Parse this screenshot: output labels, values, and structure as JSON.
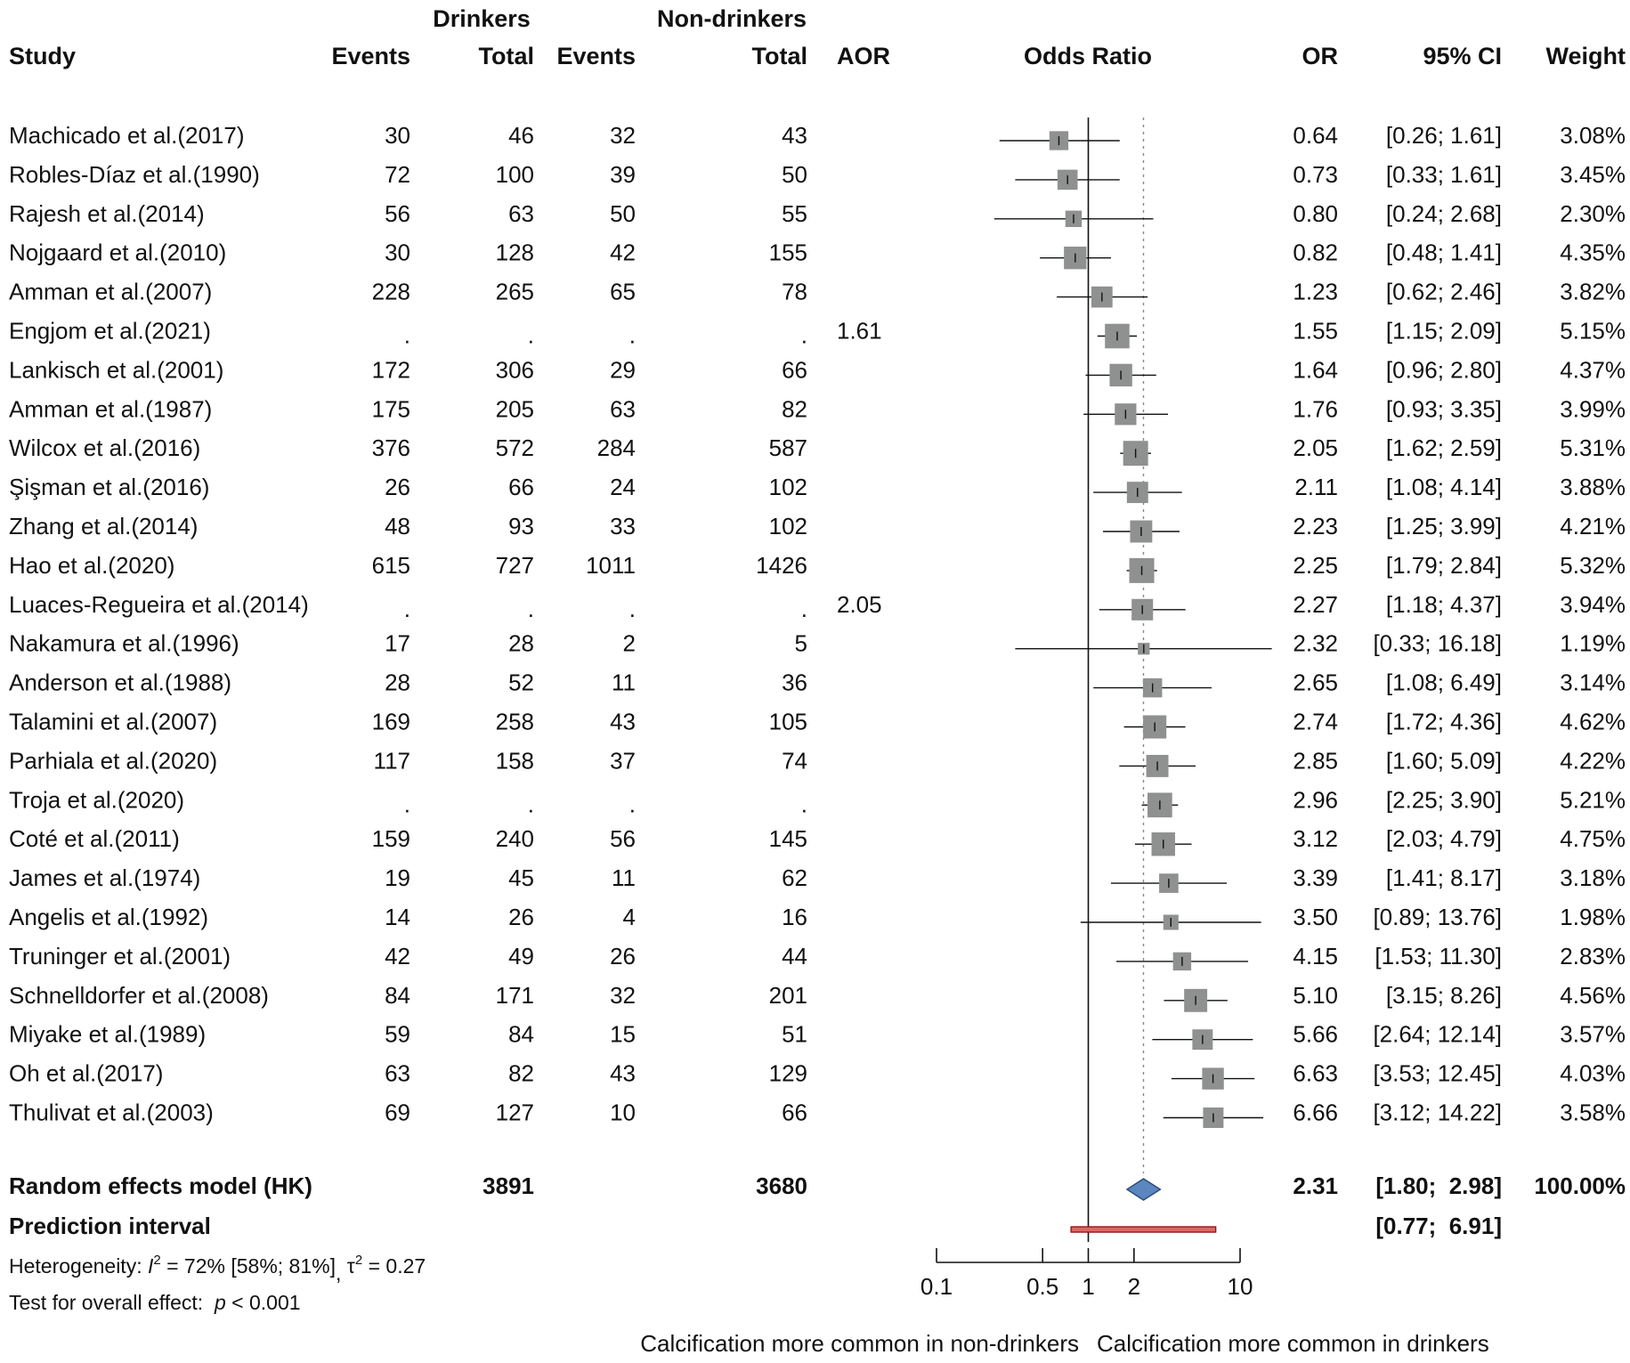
{
  "headers": {
    "group_drinkers": "Drinkers",
    "group_nondrinkers": "Non-drinkers",
    "study": "Study",
    "events_d": "Events",
    "total_d": "Total",
    "events_n": "Events",
    "total_n": "Total",
    "aor": "AOR",
    "odds_ratio": "Odds Ratio",
    "or": "OR",
    "ci": "95% CI",
    "weight": "Weight"
  },
  "chart_data": {
    "type": "forest",
    "title": "Odds Ratio",
    "xscale": "log",
    "xlim": [
      0.1,
      10
    ],
    "xticks": [
      "0.1",
      "0.5",
      "1",
      "2",
      "10"
    ],
    "null_line": 1,
    "summary_line": 2.31,
    "xlabel_left": "Calcification more common in non-drinkers",
    "xlabel_right": "Calcification more common in drinkers",
    "studies": [
      {
        "study": "Machicado et al.(2017)",
        "ev_d": "30",
        "tot_d": "46",
        "ev_n": "32",
        "tot_n": "43",
        "aor": "",
        "or": 0.64,
        "lo": 0.26,
        "hi": 1.61,
        "or_txt": "0.64",
        "ci_txt": "[0.26;  1.61]",
        "w": 3.08,
        "w_txt": "3.08%"
      },
      {
        "study": "Robles-Díaz et al.(1990)",
        "ev_d": "72",
        "tot_d": "100",
        "ev_n": "39",
        "tot_n": "50",
        "aor": "",
        "or": 0.73,
        "lo": 0.33,
        "hi": 1.61,
        "or_txt": "0.73",
        "ci_txt": "[0.33;  1.61]",
        "w": 3.45,
        "w_txt": "3.45%"
      },
      {
        "study": "Rajesh et al.(2014)",
        "ev_d": "56",
        "tot_d": "63",
        "ev_n": "50",
        "tot_n": "55",
        "aor": "",
        "or": 0.8,
        "lo": 0.24,
        "hi": 2.68,
        "or_txt": "0.80",
        "ci_txt": "[0.24;  2.68]",
        "w": 2.3,
        "w_txt": "2.30%"
      },
      {
        "study": "Nojgaard et al.(2010)",
        "ev_d": "30",
        "tot_d": "128",
        "ev_n": "42",
        "tot_n": "155",
        "aor": "",
        "or": 0.82,
        "lo": 0.48,
        "hi": 1.41,
        "or_txt": "0.82",
        "ci_txt": "[0.48;  1.41]",
        "w": 4.35,
        "w_txt": "4.35%"
      },
      {
        "study": "Amman et al.(2007)",
        "ev_d": "228",
        "tot_d": "265",
        "ev_n": "65",
        "tot_n": "78",
        "aor": "",
        "or": 1.23,
        "lo": 0.62,
        "hi": 2.46,
        "or_txt": "1.23",
        "ci_txt": "[0.62;  2.46]",
        "w": 3.82,
        "w_txt": "3.82%"
      },
      {
        "study": "Engjom et al.(2021)",
        "ev_d": ".",
        "tot_d": ".",
        "ev_n": ".",
        "tot_n": ".",
        "aor": "1.61",
        "or": 1.55,
        "lo": 1.15,
        "hi": 2.09,
        "or_txt": "1.55",
        "ci_txt": "[1.15;  2.09]",
        "w": 5.15,
        "w_txt": "5.15%"
      },
      {
        "study": "Lankisch et al.(2001)",
        "ev_d": "172",
        "tot_d": "306",
        "ev_n": "29",
        "tot_n": "66",
        "aor": "",
        "or": 1.64,
        "lo": 0.96,
        "hi": 2.8,
        "or_txt": "1.64",
        "ci_txt": "[0.96;  2.80]",
        "w": 4.37,
        "w_txt": "4.37%"
      },
      {
        "study": "Amman et al.(1987)",
        "ev_d": "175",
        "tot_d": "205",
        "ev_n": "63",
        "tot_n": "82",
        "aor": "",
        "or": 1.76,
        "lo": 0.93,
        "hi": 3.35,
        "or_txt": "1.76",
        "ci_txt": "[0.93;  3.35]",
        "w": 3.99,
        "w_txt": "3.99%"
      },
      {
        "study": "Wilcox et al.(2016)",
        "ev_d": "376",
        "tot_d": "572",
        "ev_n": "284",
        "tot_n": "587",
        "aor": "",
        "or": 2.05,
        "lo": 1.62,
        "hi": 2.59,
        "or_txt": "2.05",
        "ci_txt": "[1.62;  2.59]",
        "w": 5.31,
        "w_txt": "5.31%"
      },
      {
        "study": "Şişman et al.(2016)",
        "ev_d": "26",
        "tot_d": "66",
        "ev_n": "24",
        "tot_n": "102",
        "aor": "",
        "or": 2.11,
        "lo": 1.08,
        "hi": 4.14,
        "or_txt": "2.11",
        "ci_txt": "[1.08;  4.14]",
        "w": 3.88,
        "w_txt": "3.88%"
      },
      {
        "study": "Zhang et al.(2014)",
        "ev_d": "48",
        "tot_d": "93",
        "ev_n": "33",
        "tot_n": "102",
        "aor": "",
        "or": 2.23,
        "lo": 1.25,
        "hi": 3.99,
        "or_txt": "2.23",
        "ci_txt": "[1.25;  3.99]",
        "w": 4.21,
        "w_txt": "4.21%"
      },
      {
        "study": "Hao et al.(2020)",
        "ev_d": "615",
        "tot_d": "727",
        "ev_n": "1011",
        "tot_n": "1426",
        "aor": "",
        "or": 2.25,
        "lo": 1.79,
        "hi": 2.84,
        "or_txt": "2.25",
        "ci_txt": "[1.79;  2.84]",
        "w": 5.32,
        "w_txt": "5.32%"
      },
      {
        "study": "Luaces-Regueira et al.(2014)",
        "ev_d": ".",
        "tot_d": ".",
        "ev_n": ".",
        "tot_n": ".",
        "aor": "2.05",
        "or": 2.27,
        "lo": 1.18,
        "hi": 4.37,
        "or_txt": "2.27",
        "ci_txt": "[1.18;  4.37]",
        "w": 3.94,
        "w_txt": "3.94%"
      },
      {
        "study": "Nakamura et al.(1996)",
        "ev_d": "17",
        "tot_d": "28",
        "ev_n": "2",
        "tot_n": "5",
        "aor": "",
        "or": 2.32,
        "lo": 0.33,
        "hi": 16.18,
        "or_txt": "2.32",
        "ci_txt": "[0.33; 16.18]",
        "w": 1.19,
        "w_txt": "1.19%"
      },
      {
        "study": "Anderson et al.(1988)",
        "ev_d": "28",
        "tot_d": "52",
        "ev_n": "11",
        "tot_n": "36",
        "aor": "",
        "or": 2.65,
        "lo": 1.08,
        "hi": 6.49,
        "or_txt": "2.65",
        "ci_txt": "[1.08;  6.49]",
        "w": 3.14,
        "w_txt": "3.14%"
      },
      {
        "study": "Talamini et al.(2007)",
        "ev_d": "169",
        "tot_d": "258",
        "ev_n": "43",
        "tot_n": "105",
        "aor": "",
        "or": 2.74,
        "lo": 1.72,
        "hi": 4.36,
        "or_txt": "2.74",
        "ci_txt": "[1.72;  4.36]",
        "w": 4.62,
        "w_txt": "4.62%"
      },
      {
        "study": "Parhiala et al.(2020)",
        "ev_d": "117",
        "tot_d": "158",
        "ev_n": "37",
        "tot_n": "74",
        "aor": "",
        "or": 2.85,
        "lo": 1.6,
        "hi": 5.09,
        "or_txt": "2.85",
        "ci_txt": "[1.60;  5.09]",
        "w": 4.22,
        "w_txt": "4.22%"
      },
      {
        "study": "Troja et al.(2020)",
        "ev_d": ".",
        "tot_d": ".",
        "ev_n": ".",
        "tot_n": ".",
        "aor": "",
        "or": 2.96,
        "lo": 2.25,
        "hi": 3.9,
        "or_txt": "2.96",
        "ci_txt": "[2.25;  3.90]",
        "w": 5.21,
        "w_txt": "5.21%"
      },
      {
        "study": "Coté et al.(2011)",
        "ev_d": "159",
        "tot_d": "240",
        "ev_n": "56",
        "tot_n": "145",
        "aor": "",
        "or": 3.12,
        "lo": 2.03,
        "hi": 4.79,
        "or_txt": "3.12",
        "ci_txt": "[2.03;  4.79]",
        "w": 4.75,
        "w_txt": "4.75%"
      },
      {
        "study": "James et al.(1974)",
        "ev_d": "19",
        "tot_d": "45",
        "ev_n": "11",
        "tot_n": "62",
        "aor": "",
        "or": 3.39,
        "lo": 1.41,
        "hi": 8.17,
        "or_txt": "3.39",
        "ci_txt": "[1.41;  8.17]",
        "w": 3.18,
        "w_txt": "3.18%"
      },
      {
        "study": "Angelis et al.(1992)",
        "ev_d": "14",
        "tot_d": "26",
        "ev_n": "4",
        "tot_n": "16",
        "aor": "",
        "or": 3.5,
        "lo": 0.89,
        "hi": 13.76,
        "or_txt": "3.50",
        "ci_txt": "[0.89; 13.76]",
        "w": 1.98,
        "w_txt": "1.98%"
      },
      {
        "study": "Truninger et al.(2001)",
        "ev_d": "42",
        "tot_d": "49",
        "ev_n": "26",
        "tot_n": "44",
        "aor": "",
        "or": 4.15,
        "lo": 1.53,
        "hi": 11.3,
        "or_txt": "4.15",
        "ci_txt": "[1.53; 11.30]",
        "w": 2.83,
        "w_txt": "2.83%"
      },
      {
        "study": "Schnelldorfer et al.(2008)",
        "ev_d": "84",
        "tot_d": "171",
        "ev_n": "32",
        "tot_n": "201",
        "aor": "",
        "or": 5.1,
        "lo": 3.15,
        "hi": 8.26,
        "or_txt": "5.10",
        "ci_txt": "[3.15;  8.26]",
        "w": 4.56,
        "w_txt": "4.56%"
      },
      {
        "study": "Miyake et al.(1989)",
        "ev_d": "59",
        "tot_d": "84",
        "ev_n": "15",
        "tot_n": "51",
        "aor": "",
        "or": 5.66,
        "lo": 2.64,
        "hi": 12.14,
        "or_txt": "5.66",
        "ci_txt": "[2.64; 12.14]",
        "w": 3.57,
        "w_txt": "3.57%"
      },
      {
        "study": "Oh et al.(2017)",
        "ev_d": "63",
        "tot_d": "82",
        "ev_n": "43",
        "tot_n": "129",
        "aor": "",
        "or": 6.63,
        "lo": 3.53,
        "hi": 12.45,
        "or_txt": "6.63",
        "ci_txt": "[3.53; 12.45]",
        "w": 4.03,
        "w_txt": "4.03%"
      },
      {
        "study": "Thulivat et al.(2003)",
        "ev_d": "69",
        "tot_d": "127",
        "ev_n": "10",
        "tot_n": "66",
        "aor": "",
        "or": 6.66,
        "lo": 3.12,
        "hi": 14.22,
        "or_txt": "6.66",
        "ci_txt": "[3.12; 14.22]",
        "w": 3.58,
        "w_txt": "3.58%"
      }
    ],
    "summary": {
      "label": "Random effects model (HK)",
      "tot_d": "3891",
      "tot_n": "3680",
      "or": 2.31,
      "lo": 1.8,
      "hi": 2.98,
      "or_txt": "2.31",
      "ci_txt": "[1.80;  2.98]",
      "w_txt": "100.00%"
    },
    "prediction": {
      "label": "Prediction interval",
      "lo": 0.77,
      "hi": 6.91,
      "ci_txt": "[0.77;  6.91]"
    }
  },
  "footer": {
    "het_prefix": "Heterogeneity: ",
    "het_i": "I",
    "het_i_sup": "2",
    "het_mid": " = 72% [58%; 81%]",
    "het_comma": ", ",
    "het_tau": "τ",
    "het_tau_sup": "2",
    "het_tau_val": " = 0.27",
    "test_prefix": "Test for overall effect:  ",
    "test_p": "p",
    "test_val": " < 0.001"
  },
  "colors": {
    "square": "#8f9190",
    "diamond": "#5b86bf",
    "diamond_stroke": "#2b4d7a",
    "prediction": "#e06666",
    "prediction_stroke": "#8b1a1a",
    "line": "#111111",
    "dotted": "#888888"
  }
}
